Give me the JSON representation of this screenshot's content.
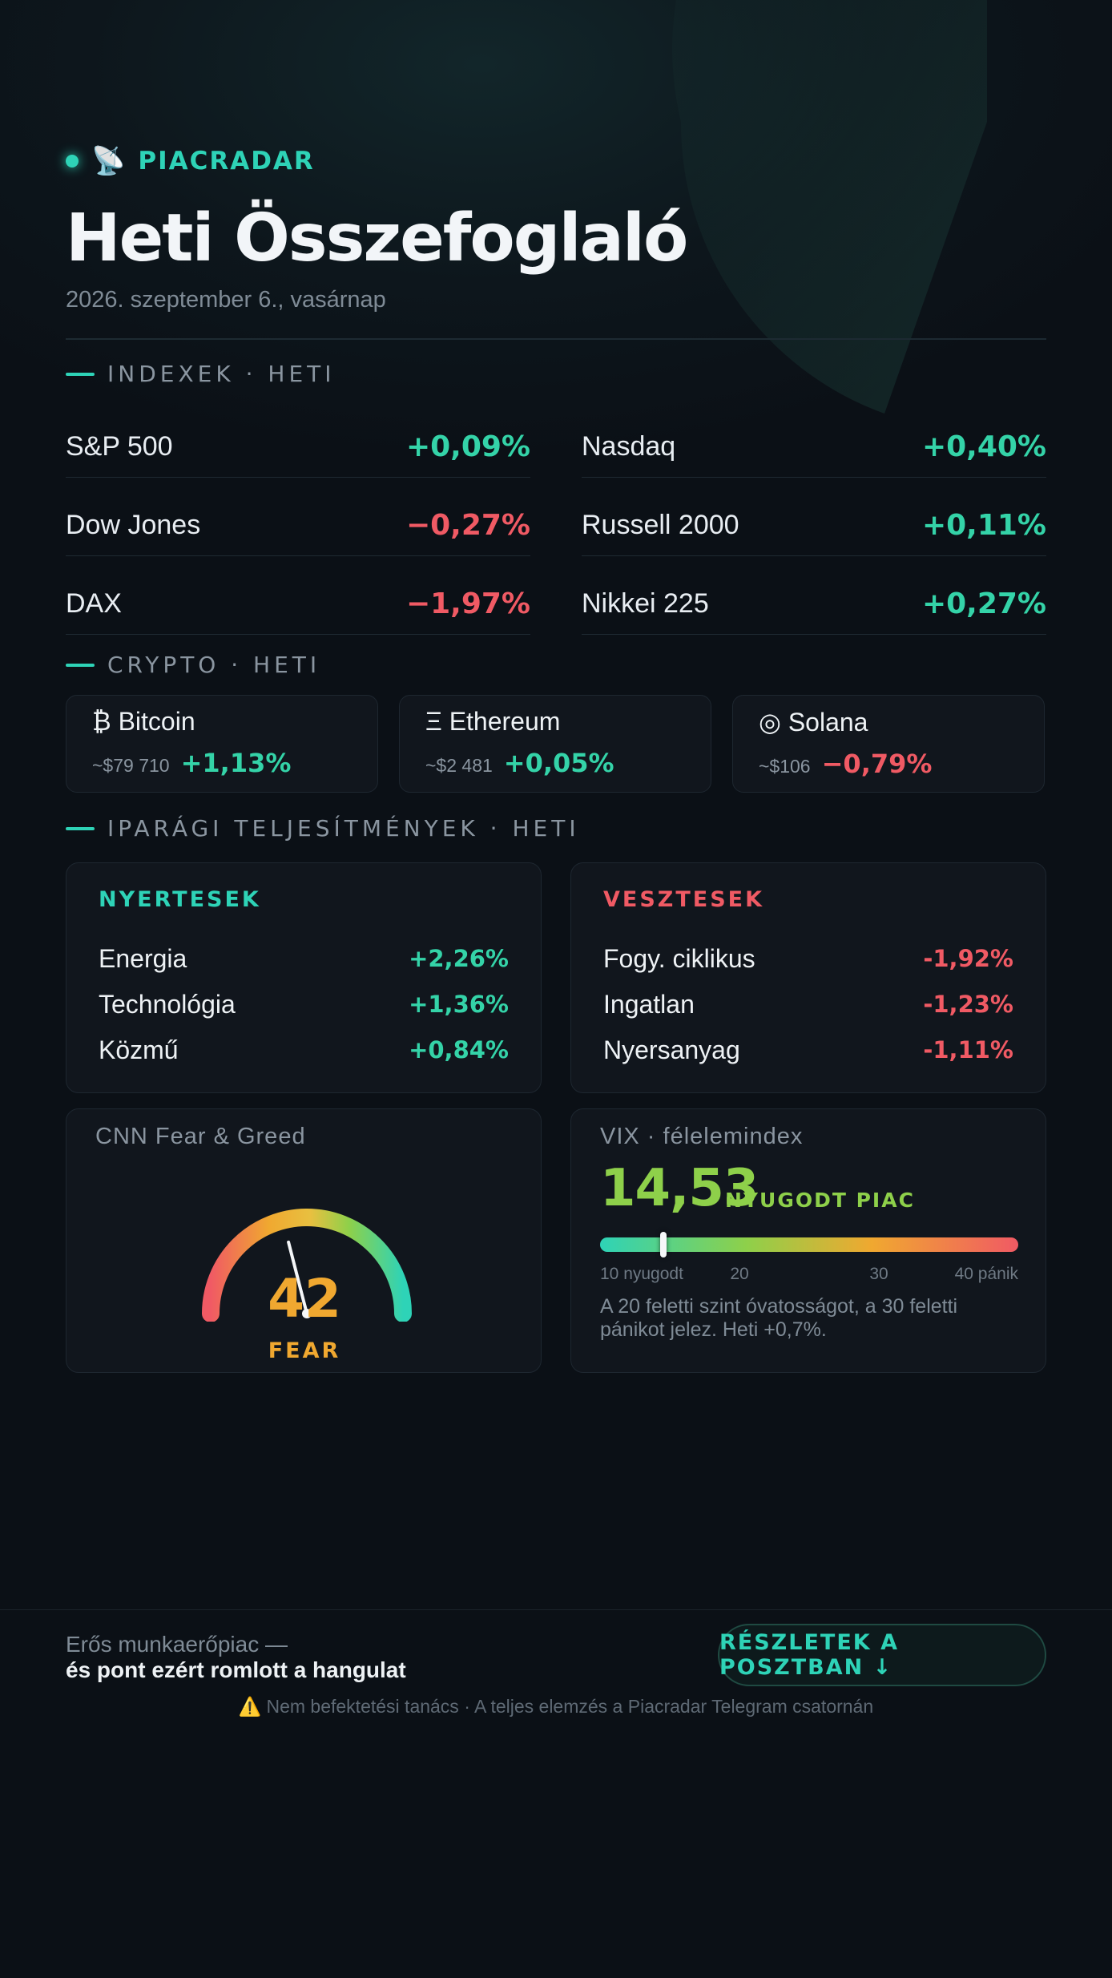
{
  "brand": {
    "icon": "satellite-dish-icon",
    "icon_glyph": "📡",
    "name": "PIACRADAR"
  },
  "title": "Heti Összefoglaló",
  "date": "2026. szeptember 6., vasárnap",
  "sections": {
    "indices": "INDEXEK · HETI",
    "crypto": "CRYPTO · HETI",
    "sectors": "IPARÁGI TELJESÍTMÉNYEK · HETI"
  },
  "indices": [
    {
      "name": "S&P 500",
      "change": "+0,09%",
      "direction": "up"
    },
    {
      "name": "Nasdaq",
      "change": "+0,40%",
      "direction": "up"
    },
    {
      "name": "Dow Jones",
      "change": "−0,27%",
      "direction": "down"
    },
    {
      "name": "Russell 2000",
      "change": "+0,11%",
      "direction": "up"
    },
    {
      "name": "DAX",
      "change": "−1,97%",
      "direction": "down"
    },
    {
      "name": "Nikkei 225",
      "change": "+0,27%",
      "direction": "up"
    }
  ],
  "crypto": [
    {
      "name": "₿ Bitcoin",
      "price": "~$79 710",
      "change": "+1,13%",
      "direction": "up"
    },
    {
      "name": "Ξ Ethereum",
      "price": "~$2 481",
      "change": "+0,05%",
      "direction": "up"
    },
    {
      "name": "◎ Solana",
      "price": "~$106",
      "change": "−0,79%",
      "direction": "down"
    }
  ],
  "winners": {
    "title": "NYERTESEK",
    "items": [
      {
        "name": "Energia",
        "change": "+2,26%"
      },
      {
        "name": "Technológia",
        "change": "+1,36%"
      },
      {
        "name": "Közmű",
        "change": "+0,84%"
      }
    ]
  },
  "losers": {
    "title": "VESZTESEK",
    "items": [
      {
        "name": "Fogy. ciklikus",
        "change": "-1,92%"
      },
      {
        "name": "Ingatlan",
        "change": "-1,23%"
      },
      {
        "name": "Nyersanyag",
        "change": "-1,11%"
      }
    ]
  },
  "fear_greed": {
    "title": "CNN Fear & Greed",
    "value": "42",
    "label": "FEAR",
    "scale_min": 0,
    "scale_max": 100
  },
  "vix": {
    "title": "VIX · félelemindex",
    "value": "14,53",
    "value_num": 14.53,
    "status": "NYUGODT PIAC",
    "scale_min": 10,
    "scale_max": 40,
    "ticks": [
      {
        "value": 10,
        "label": "10 nyugodt"
      },
      {
        "value": 20,
        "label": "20"
      },
      {
        "value": 30,
        "label": "30"
      },
      {
        "value": 40,
        "label": "40 pánik"
      }
    ],
    "note": "A 20 feletti szint óvatosságot, a 30 feletti pánikot jelez. Heti +0,7%."
  },
  "footer": {
    "line1": "Erős munkaerőpiac —",
    "line2": "és pont ezért romlott a hangulat",
    "button": "RÉSZLETEK A POSZTBAN ↓",
    "disclaimer_icon": "warning-icon",
    "disclaimer_glyph": "⚠️",
    "disclaimer": "Nem befektetési tanács · A teljes elemzés a Piacradar Telegram csatornán"
  },
  "colors": {
    "accent": "#2ed3b7",
    "positive": "#34d3a8",
    "negative": "#f05a64",
    "fear": "#f0a830",
    "vix": "#8ed04a",
    "background": "#0b1016"
  }
}
